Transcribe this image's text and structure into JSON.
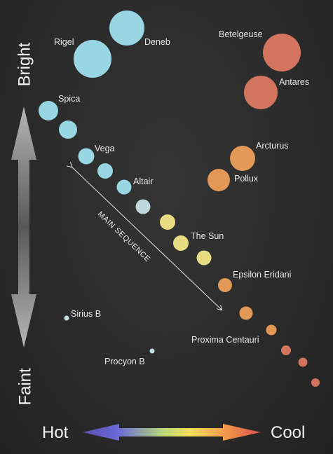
{
  "axis": {
    "bright": "Bright",
    "faint": "Faint",
    "hot": "Hot",
    "cool": "Cool"
  },
  "main_sequence_label": "MAIN SEQUENCE",
  "colors": {
    "blue": "#9fe3f0",
    "white_blue": "#c9e3e8",
    "yellow": "#f6e98a",
    "orange": "#f0a05a",
    "red": "#e07a62",
    "white_dwarf": "#cfeef2"
  },
  "stars": [
    {
      "name": "Deneb",
      "color": "blue"
    },
    {
      "name": "Rigel",
      "color": "blue"
    },
    {
      "name": "Betelgeuse",
      "color": "red"
    },
    {
      "name": "Antares",
      "color": "red"
    },
    {
      "name": "Spica",
      "color": "blue"
    },
    {
      "name": "",
      "color": "blue"
    },
    {
      "name": "Vega",
      "color": "blue"
    },
    {
      "name": "",
      "color": "blue"
    },
    {
      "name": "Altair",
      "color": "blue"
    },
    {
      "name": "",
      "color": "white_blue"
    },
    {
      "name": "",
      "color": "yellow"
    },
    {
      "name": "The Sun",
      "color": "yellow"
    },
    {
      "name": "",
      "color": "yellow"
    },
    {
      "name": "Arcturus",
      "color": "orange"
    },
    {
      "name": "Pollux",
      "color": "orange"
    },
    {
      "name": "Epsilon Eridani",
      "color": "orange"
    },
    {
      "name": "",
      "color": "orange"
    },
    {
      "name": "Proxima Centauri",
      "color": "orange"
    },
    {
      "name": "",
      "color": "red"
    },
    {
      "name": "",
      "color": "red"
    },
    {
      "name": "",
      "color": "red"
    },
    {
      "name": "Sirius B",
      "color": "white_dwarf"
    },
    {
      "name": "Procyon B",
      "color": "white_dwarf"
    }
  ]
}
